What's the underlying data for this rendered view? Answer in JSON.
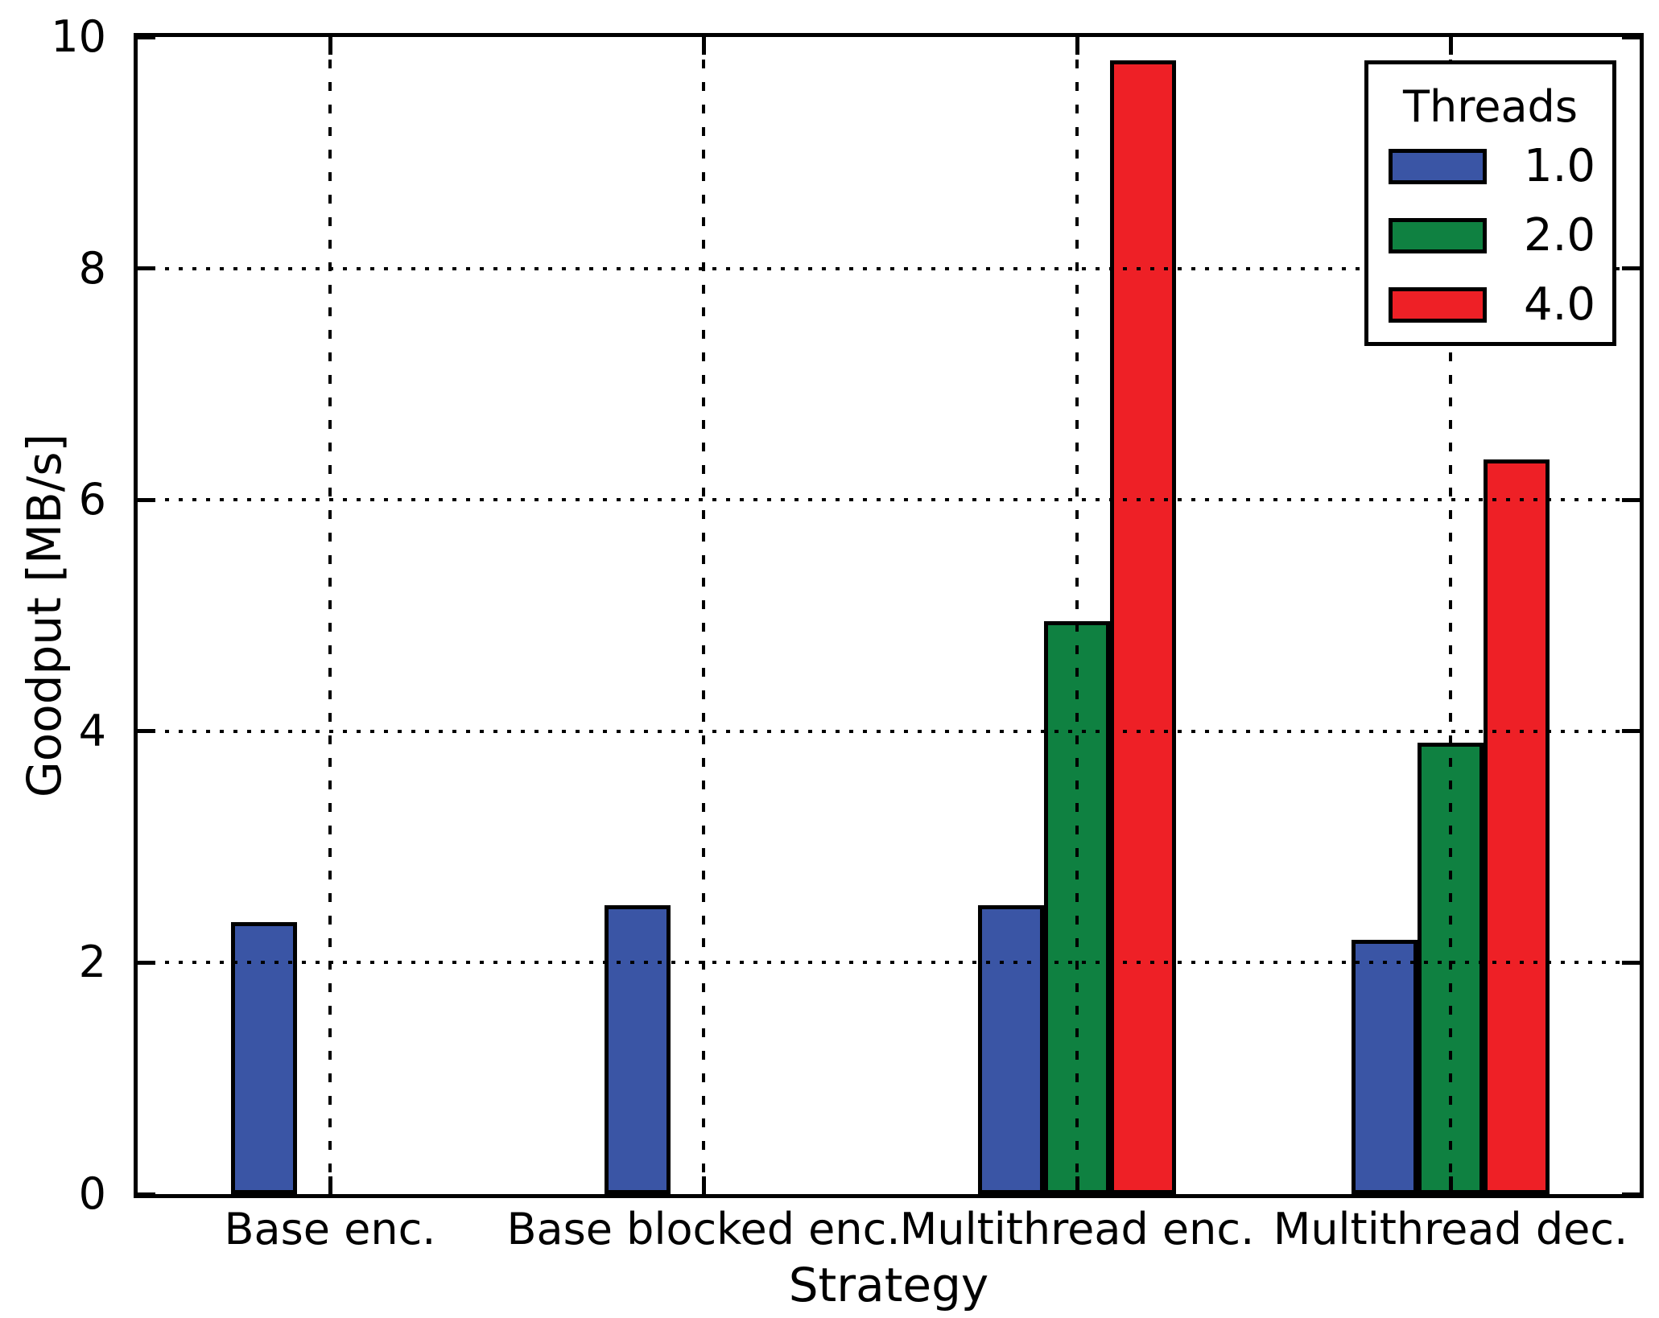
{
  "chart_data": {
    "type": "bar",
    "title": "",
    "xlabel": "Strategy",
    "ylabel": "Goodput [MB/s]",
    "categories": [
      "Base enc.",
      "Base blocked enc.",
      "Multithread enc.",
      "Multithread dec."
    ],
    "series": [
      {
        "name": "1.0",
        "color": "#3a55a5",
        "values": [
          2.35,
          2.5,
          2.5,
          2.2
        ]
      },
      {
        "name": "2.0",
        "color": "#0f8141",
        "values": [
          null,
          null,
          4.95,
          3.9
        ]
      },
      {
        "name": "4.0",
        "color": "#ee2026",
        "values": [
          null,
          null,
          9.8,
          6.35
        ]
      }
    ],
    "ylim": [
      0,
      10
    ],
    "yticks": [
      0,
      2,
      4,
      6,
      8,
      10
    ],
    "ytick_labels": [
      "0",
      "2",
      "4",
      "6",
      "8",
      "10"
    ],
    "legend_title": "Threads",
    "legend_position": "upper right",
    "grid": true,
    "grid_style": "dotted",
    "axis_color": "#000000",
    "background_color": "#ffffff"
  }
}
